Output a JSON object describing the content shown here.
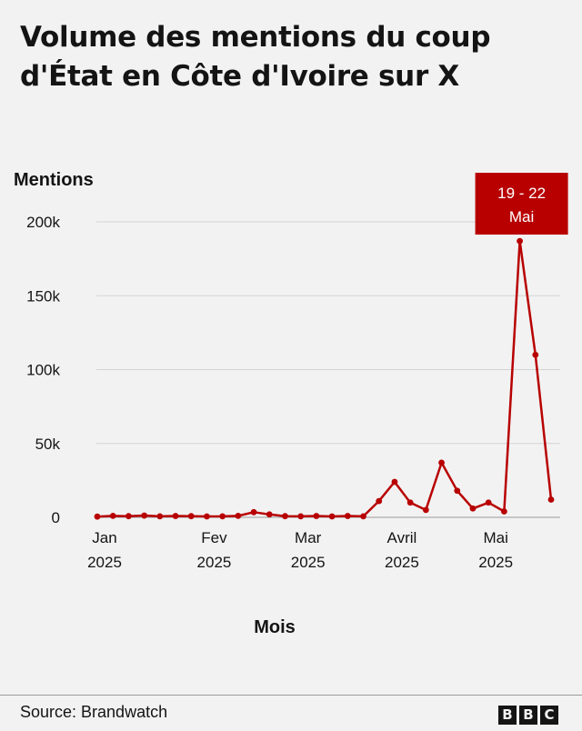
{
  "title": "Volume des mentions du coup d'État en Côte d'Ivoire sur X",
  "source": "Source:  Brandwatch",
  "logo_letters": [
    "B",
    "B",
    "C"
  ],
  "colors": {
    "line": "#b80000",
    "grid": "#d4d4d4",
    "text": "#141414",
    "background": "#f2f2f2"
  },
  "chart_data": {
    "type": "line",
    "title": "Volume des mentions du coup d'État en Côte d'Ivoire sur X",
    "xlabel": "Mois",
    "ylabel": "Mentions",
    "ylim": [
      0,
      200000
    ],
    "yticks": [
      {
        "value": 0,
        "label": "0"
      },
      {
        "value": 50000,
        "label": "50k"
      },
      {
        "value": 100000,
        "label": "100k"
      },
      {
        "value": 150000,
        "label": "150k"
      },
      {
        "value": 200000,
        "label": "200k"
      }
    ],
    "xticks": [
      {
        "index": 0,
        "lines": [
          "Jan",
          "2025"
        ]
      },
      {
        "index": 7,
        "lines": [
          "Fev",
          "2025"
        ]
      },
      {
        "index": 13,
        "lines": [
          "Mar",
          "2025"
        ]
      },
      {
        "index": 19,
        "lines": [
          "Avril",
          "2025"
        ]
      },
      {
        "index": 25,
        "lines": [
          "Mai",
          "2025"
        ]
      }
    ],
    "grid": true,
    "series": [
      {
        "values": [
          500,
          1000,
          800,
          1200,
          700,
          900,
          800,
          600,
          700,
          1000,
          3500,
          2000,
          800,
          700,
          900,
          600,
          900,
          700,
          11000,
          24000,
          10000,
          5000,
          37000,
          18000,
          6000,
          10000,
          4000,
          187000,
          110000,
          12000
        ]
      }
    ],
    "annotations": [
      {
        "index": 27,
        "lines": [
          "19 - 22",
          "Mai"
        ]
      }
    ]
  }
}
